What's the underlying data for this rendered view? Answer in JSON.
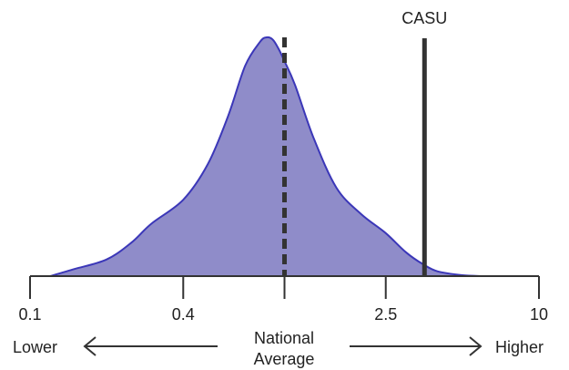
{
  "chart_data": {
    "type": "area",
    "x_scale": "log",
    "xlim": [
      0.1,
      10
    ],
    "x_ticks": [
      {
        "value": 0.1,
        "label": "0.1"
      },
      {
        "value": 0.4,
        "label": "0.4"
      },
      {
        "value": 1,
        "label": ""
      },
      {
        "value": 2.5,
        "label": "2.5"
      },
      {
        "value": 10,
        "label": "10"
      }
    ],
    "grid": false,
    "density": {
      "x": [
        0.12,
        0.15,
        0.2,
        0.25,
        0.3,
        0.4,
        0.5,
        0.6,
        0.7,
        0.8,
        0.85,
        0.9,
        0.95,
        1.0,
        1.1,
        1.3,
        1.6,
        2.0,
        2.5,
        3.0,
        3.5,
        4.0,
        5.0,
        6.0
      ],
      "y": [
        0.0,
        0.03,
        0.07,
        0.14,
        0.22,
        0.32,
        0.47,
        0.67,
        0.88,
        0.98,
        1.0,
        0.99,
        0.95,
        0.9,
        0.8,
        0.58,
        0.37,
        0.26,
        0.18,
        0.1,
        0.05,
        0.02,
        0.004,
        0.0
      ]
    },
    "reference_lines": [
      {
        "x": 1.0,
        "style": "dashed",
        "label": ""
      },
      {
        "x": 3.55,
        "style": "solid",
        "label": "CASU"
      }
    ],
    "annotations": {
      "left": "Lower",
      "center_line1": "National",
      "center_line2": "Average",
      "right": "Higher"
    },
    "colors": {
      "fill": "#8f8cc9",
      "stroke": "#3b37b8",
      "line": "#333333"
    }
  }
}
